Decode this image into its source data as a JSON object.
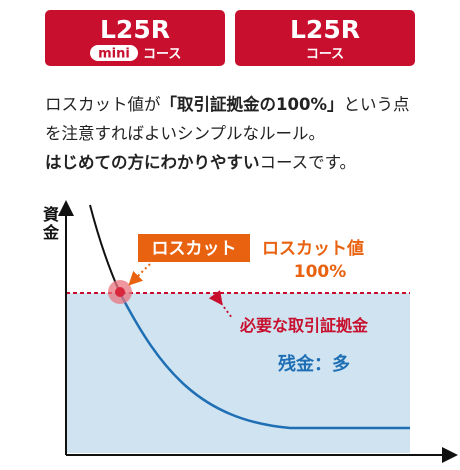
{
  "tabs": [
    {
      "title": "L25R",
      "badge": "mini",
      "label": "コース"
    },
    {
      "title": "L25R",
      "label": "コース"
    }
  ],
  "description": {
    "parts": [
      "ロスカット値が",
      "「取引証拠金の100%」",
      "という点を注意すればよいシンプルなルール。",
      "はじめての方にわかりやすい",
      "コースです。"
    ]
  },
  "diagram": {
    "y_axis_label": "資金",
    "losscut_badge": "ロスカット",
    "losscut_value_label": "ロスカット値",
    "losscut_value": "100%",
    "margin_label": "必要な取引証拠金",
    "balance_label": "残金：多"
  }
}
